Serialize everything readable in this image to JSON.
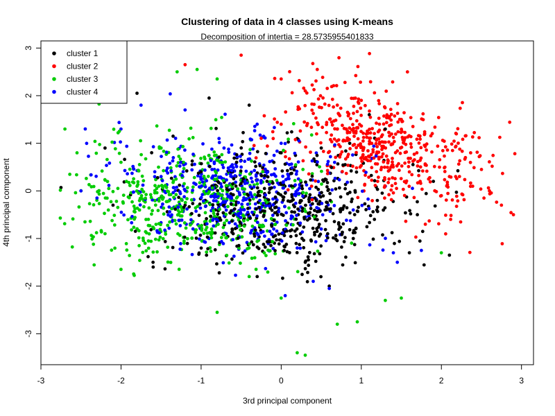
{
  "chart_data": {
    "type": "scatter",
    "title": "Clustering of data in 4 classes using K-means",
    "subtitle": "Decomposition of intertia = 28.5735955401833",
    "xlabel": "3rd principal component",
    "ylabel": "4th principal component",
    "xlim": [
      -3,
      3.15
    ],
    "ylim": [
      -3.65,
      3.15
    ],
    "x_ticks": [
      -3,
      -2,
      -1,
      0,
      1,
      2,
      3
    ],
    "y_ticks": [
      -3,
      -2,
      -1,
      0,
      1,
      2,
      3
    ],
    "grid": false,
    "legend_position": "top-left",
    "series": [
      {
        "name": "cluster 1",
        "color": "#000000",
        "centroid": [
          0.0,
          -0.35
        ],
        "spread": [
          0.75,
          0.6
        ],
        "points": [
          [
            -2.75,
            0.07
          ],
          [
            -1.8,
            2.05
          ],
          [
            -1.6,
            -1.5
          ],
          [
            -1.35,
            1.15
          ],
          [
            -0.9,
            1.95
          ],
          [
            -0.4,
            1.8
          ],
          [
            0.2,
            1.1
          ],
          [
            0.5,
            0.9
          ],
          [
            1.1,
            1.6
          ],
          [
            1.3,
            1.3
          ],
          [
            1.9,
            0.2
          ],
          [
            2.1,
            -1.35
          ],
          [
            1.7,
            -0.5
          ],
          [
            0.9,
            -1.0
          ],
          [
            0.3,
            -1.5
          ],
          [
            -0.3,
            -1.8
          ],
          [
            -0.6,
            -0.9
          ],
          [
            -1.2,
            -0.3
          ],
          [
            -2.2,
            0.9
          ],
          [
            -2.1,
            -0.3
          ],
          [
            0.6,
            -2.0
          ],
          [
            1.6,
            -1.3
          ],
          [
            1.2,
            -0.2
          ],
          [
            -1.0,
            0.4
          ],
          [
            0.0,
            0.8
          ]
        ]
      },
      {
        "name": "cluster 2",
        "color": "#ff0000",
        "centroid": [
          1.25,
          0.95
        ],
        "spread": [
          0.65,
          0.6
        ],
        "points": [
          [
            -1.2,
            2.65
          ],
          [
            -0.5,
            2.85
          ],
          [
            0.0,
            2.35
          ],
          [
            0.45,
            2.55
          ],
          [
            2.9,
            -0.5
          ],
          [
            2.75,
            -0.3
          ],
          [
            2.5,
            0.45
          ],
          [
            2.3,
            0.7
          ],
          [
            0.0,
            1.4
          ],
          [
            1.5,
            1.5
          ],
          [
            0.3,
            2.1
          ],
          [
            1.0,
            1.9
          ],
          [
            2.0,
            -0.1
          ],
          [
            1.8,
            -0.7
          ],
          [
            2.1,
            0.3
          ],
          [
            0.7,
            1.8
          ],
          [
            -0.1,
            1.1
          ],
          [
            2.6,
            0.0
          ],
          [
            1.6,
            0.4
          ],
          [
            1.2,
            0.8
          ]
        ]
      },
      {
        "name": "cluster 3",
        "color": "#00cc00",
        "centroid": [
          -1.1,
          -0.3
        ],
        "spread": [
          0.75,
          0.65
        ],
        "points": [
          [
            -2.7,
            1.3
          ],
          [
            -2.55,
            0.8
          ],
          [
            -2.45,
            -0.65
          ],
          [
            -1.3,
            2.5
          ],
          [
            -1.05,
            2.55
          ],
          [
            -0.8,
            2.35
          ],
          [
            0.2,
            -3.4
          ],
          [
            0.3,
            -3.45
          ],
          [
            0.7,
            -2.8
          ],
          [
            0.95,
            -2.75
          ],
          [
            1.3,
            -2.3
          ],
          [
            1.5,
            -2.25
          ],
          [
            0.0,
            -2.25
          ],
          [
            -0.8,
            -2.55
          ],
          [
            2.0,
            -1.3
          ],
          [
            -2.2,
            -0.9
          ],
          [
            -1.7,
            -1.1
          ],
          [
            -0.4,
            -1.8
          ],
          [
            -1.5,
            0.9
          ],
          [
            -2.0,
            0.6
          ]
        ]
      },
      {
        "name": "cluster 4",
        "color": "#0000ff",
        "centroid": [
          -0.55,
          -0.05
        ],
        "spread": [
          0.7,
          0.6
        ],
        "points": [
          [
            -2.5,
            0.0
          ],
          [
            -2.3,
            -0.15
          ],
          [
            -2.0,
            1.3
          ],
          [
            -1.75,
            1.8
          ],
          [
            -1.2,
            1.7
          ],
          [
            0.05,
            -2.2
          ],
          [
            0.4,
            -1.9
          ],
          [
            0.6,
            -2.05
          ],
          [
            1.4,
            -1.3
          ],
          [
            1.45,
            -1.5
          ],
          [
            1.75,
            -1.25
          ],
          [
            1.3,
            0.1
          ],
          [
            0.9,
            -0.4
          ],
          [
            -0.3,
            1.4
          ],
          [
            0.0,
            1.0
          ],
          [
            -0.9,
            -1.0
          ],
          [
            0.2,
            -1.2
          ],
          [
            -1.5,
            0.3
          ],
          [
            -0.5,
            0.5
          ],
          [
            0.5,
            -0.8
          ]
        ]
      }
    ],
    "point_count_per_cluster": 520
  }
}
